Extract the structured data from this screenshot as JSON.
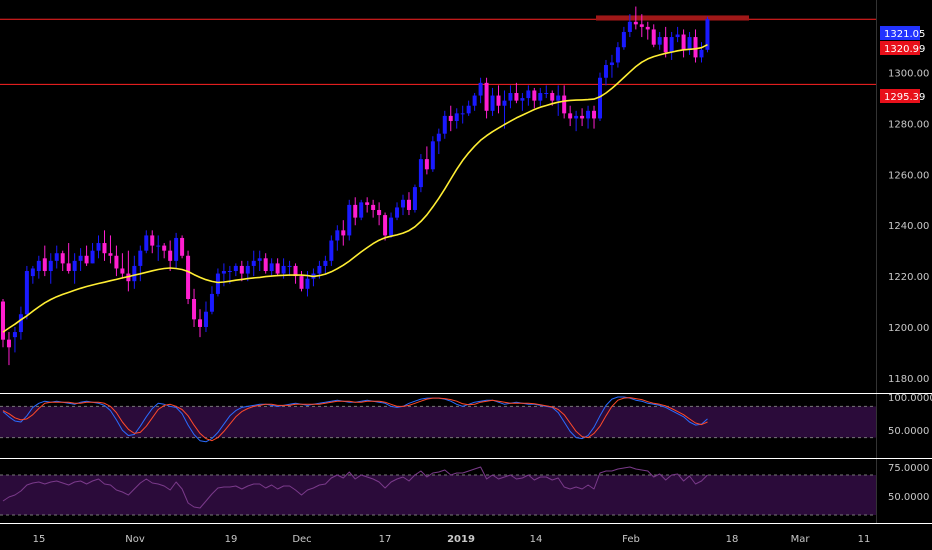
{
  "colors": {
    "background": "#000000",
    "bull_candle": "#1a1aff",
    "bear_candle": "#ff1fd0",
    "ma_line": "#ffee33",
    "hline": "#ff2222",
    "resistance_zone": "#a01818",
    "last_price_tag": "#2233ff",
    "level_tag": "#e8101a",
    "stoch_k": "#2a6cff",
    "stoch_d": "#ff4a2a",
    "rsi_line": "#7a3a8a",
    "osc_band": "#2b0b3a",
    "separator": "#ffffff",
    "axis_text": "#c8c8c8"
  },
  "price_axis": {
    "labels": [
      "1300.00",
      "1280.00",
      "1260.00",
      "1240.00",
      "1220.00",
      "1200.00",
      "1180.00"
    ],
    "values": [
      1300,
      1280,
      1260,
      1240,
      1220,
      1200,
      1180
    ],
    "range": [
      1176,
      1327
    ]
  },
  "price_tags": [
    {
      "label": "1321.05",
      "value": 1321.05,
      "color": "#2233ff"
    },
    {
      "label": "1320.99",
      "value": 1320.99,
      "color": "#e8101a"
    },
    {
      "label": "1295.39",
      "value": 1295.39,
      "color": "#e8101a"
    }
  ],
  "stoch_axis": {
    "labels": [
      "100.0000",
      "50.0000"
    ],
    "values": [
      100,
      50
    ],
    "band": [
      20,
      80
    ]
  },
  "rsi_axis": {
    "labels": [
      "75.0000",
      "50.0000"
    ],
    "values": [
      75,
      50
    ],
    "band": [
      30,
      70
    ]
  },
  "time_axis": {
    "labels": [
      "15",
      "Nov",
      "19",
      "Dec",
      "17",
      "2019",
      "14",
      "Feb",
      "18",
      "Mar",
      "11"
    ],
    "bold": [
      false,
      false,
      false,
      false,
      false,
      true,
      false,
      false,
      false,
      false,
      false
    ]
  },
  "chart_data": {
    "type": "candlestick",
    "title": "",
    "hlines": [
      1320.99,
      1295.39
    ],
    "zone": [
      1320.5,
      1322.5
    ],
    "candles": [
      [
        1210.0,
        1211.0,
        1192.0,
        1195.0
      ],
      [
        1195.0,
        1198.0,
        1185.0,
        1192.0
      ],
      [
        1196.0,
        1200.0,
        1190.0,
        1198.0
      ],
      [
        1198.0,
        1208.0,
        1195.0,
        1205.0
      ],
      [
        1205.0,
        1224.0,
        1203.0,
        1222.0
      ],
      [
        1220.0,
        1224.0,
        1217.0,
        1223.0
      ],
      [
        1222.0,
        1228.0,
        1219.0,
        1226.0
      ],
      [
        1227.0,
        1232.0,
        1220.0,
        1222.0
      ],
      [
        1222.0,
        1229.0,
        1217.0,
        1226.0
      ],
      [
        1226.0,
        1232.0,
        1223.0,
        1229.0
      ],
      [
        1229.0,
        1230.0,
        1222.0,
        1225.0
      ],
      [
        1225.0,
        1233.0,
        1221.0,
        1222.0
      ],
      [
        1222.0,
        1229.0,
        1217.0,
        1226.0
      ],
      [
        1226.0,
        1231.0,
        1222.0,
        1228.0
      ],
      [
        1228.0,
        1232.0,
        1224.0,
        1225.0
      ],
      [
        1225.0,
        1233.0,
        1225.0,
        1230.0
      ],
      [
        1230.0,
        1236.0,
        1227.0,
        1233.0
      ],
      [
        1233.0,
        1238.0,
        1226.0,
        1229.0
      ],
      [
        1229.0,
        1236.0,
        1225.0,
        1228.0
      ],
      [
        1228.0,
        1232.0,
        1220.0,
        1223.0
      ],
      [
        1223.0,
        1229.0,
        1219.0,
        1221.0
      ],
      [
        1221.0,
        1230.0,
        1214.0,
        1218.0
      ],
      [
        1218.0,
        1228.0,
        1215.0,
        1224.0
      ],
      [
        1224.0,
        1232.0,
        1218.0,
        1230.0
      ],
      [
        1230.0,
        1238.0,
        1229.0,
        1236.0
      ],
      [
        1236.0,
        1238.0,
        1229.0,
        1232.0
      ],
      [
        1232.0,
        1236.0,
        1226.0,
        1232.0
      ],
      [
        1232.0,
        1233.0,
        1227.0,
        1230.0
      ],
      [
        1230.0,
        1234.0,
        1222.0,
        1226.0
      ],
      [
        1226.0,
        1237.0,
        1223.0,
        1235.0
      ],
      [
        1235.0,
        1236.0,
        1227.0,
        1228.0
      ],
      [
        1228.0,
        1230.0,
        1209.0,
        1211.0
      ],
      [
        1211.0,
        1215.0,
        1200.0,
        1203.0
      ],
      [
        1203.0,
        1207.0,
        1196.0,
        1200.0
      ],
      [
        1200.0,
        1210.0,
        1198.0,
        1206.0
      ],
      [
        1206.0,
        1216.0,
        1205.0,
        1213.0
      ],
      [
        1213.0,
        1223.0,
        1212.0,
        1221.0
      ],
      [
        1221.0,
        1225.0,
        1216.0,
        1222.0
      ],
      [
        1222.0,
        1224.0,
        1217.0,
        1222.0
      ],
      [
        1222.0,
        1225.0,
        1220.0,
        1224.0
      ],
      [
        1224.0,
        1226.0,
        1218.0,
        1221.0
      ],
      [
        1221.0,
        1226.0,
        1218.0,
        1224.0
      ],
      [
        1224.0,
        1230.0,
        1220.0,
        1226.0
      ],
      [
        1226.0,
        1230.0,
        1222.0,
        1227.0
      ],
      [
        1227.0,
        1229.0,
        1221.0,
        1222.0
      ],
      [
        1222.0,
        1227.0,
        1220.0,
        1225.0
      ],
      [
        1225.0,
        1227.0,
        1220.0,
        1221.0
      ],
      [
        1221.0,
        1227.0,
        1219.0,
        1224.0
      ],
      [
        1224.0,
        1226.0,
        1220.0,
        1224.0
      ],
      [
        1224.0,
        1225.0,
        1217.0,
        1220.0
      ],
      [
        1220.0,
        1222.0,
        1214.0,
        1215.0
      ],
      [
        1215.0,
        1222.0,
        1212.0,
        1219.0
      ],
      [
        1219.0,
        1223.0,
        1216.0,
        1221.0
      ],
      [
        1221.0,
        1226.0,
        1219.0,
        1224.0
      ],
      [
        1224.0,
        1228.0,
        1221.0,
        1226.0
      ],
      [
        1226.0,
        1236.0,
        1224.0,
        1234.0
      ],
      [
        1234.0,
        1240.0,
        1230.0,
        1238.0
      ],
      [
        1238.0,
        1242.0,
        1232.0,
        1236.0
      ],
      [
        1236.0,
        1250.0,
        1234.0,
        1248.0
      ],
      [
        1248.0,
        1251.0,
        1240.0,
        1243.0
      ],
      [
        1243.0,
        1250.0,
        1242.0,
        1249.0
      ],
      [
        1249.0,
        1251.0,
        1245.0,
        1248.0
      ],
      [
        1248.0,
        1250.0,
        1243.0,
        1246.0
      ],
      [
        1246.0,
        1249.0,
        1240.0,
        1244.0
      ],
      [
        1244.0,
        1245.0,
        1234.0,
        1236.0
      ],
      [
        1236.0,
        1245.0,
        1235.0,
        1243.0
      ],
      [
        1243.0,
        1249.0,
        1242.0,
        1247.0
      ],
      [
        1247.0,
        1252.0,
        1244.0,
        1250.0
      ],
      [
        1250.0,
        1253.0,
        1244.0,
        1246.0
      ],
      [
        1246.0,
        1256.0,
        1245.0,
        1255.0
      ],
      [
        1255.0,
        1268.0,
        1253.0,
        1266.0
      ],
      [
        1266.0,
        1271.0,
        1260.0,
        1262.0
      ],
      [
        1262.0,
        1275.0,
        1261.0,
        1273.0
      ],
      [
        1273.0,
        1278.0,
        1268.0,
        1276.0
      ],
      [
        1276.0,
        1285.0,
        1274.0,
        1283.0
      ],
      [
        1283.0,
        1287.0,
        1277.0,
        1281.0
      ],
      [
        1281.0,
        1286.0,
        1278.0,
        1284.0
      ],
      [
        1284.0,
        1287.0,
        1280.0,
        1284.0
      ],
      [
        1284.0,
        1289.0,
        1283.0,
        1287.0
      ],
      [
        1287.0,
        1292.0,
        1285.0,
        1291.0
      ],
      [
        1291.0,
        1298.0,
        1288.0,
        1296.0
      ],
      [
        1296.0,
        1298.0,
        1282.0,
        1285.0
      ],
      [
        1285.0,
        1294.0,
        1283.0,
        1291.0
      ],
      [
        1291.0,
        1295.0,
        1284.0,
        1287.0
      ],
      [
        1287.0,
        1293.0,
        1278.0,
        1289.0
      ],
      [
        1289.0,
        1295.0,
        1286.0,
        1292.0
      ],
      [
        1292.0,
        1296.0,
        1288.0,
        1289.0
      ],
      [
        1289.0,
        1292.0,
        1285.0,
        1290.0
      ],
      [
        1290.0,
        1295.0,
        1287.0,
        1293.0
      ],
      [
        1293.0,
        1294.0,
        1286.0,
        1289.0
      ],
      [
        1289.0,
        1294.0,
        1287.0,
        1292.0
      ],
      [
        1292.0,
        1295.0,
        1290.0,
        1292.0
      ],
      [
        1292.0,
        1293.0,
        1287.0,
        1289.0
      ],
      [
        1289.0,
        1295.0,
        1283.0,
        1291.0
      ],
      [
        1291.0,
        1295.0,
        1282.0,
        1284.0
      ],
      [
        1284.0,
        1287.0,
        1279.0,
        1282.0
      ],
      [
        1282.0,
        1285.0,
        1277.0,
        1283.0
      ],
      [
        1283.0,
        1286.0,
        1279.0,
        1282.0
      ],
      [
        1282.0,
        1287.0,
        1278.0,
        1285.0
      ],
      [
        1285.0,
        1287.0,
        1278.0,
        1282.0
      ],
      [
        1282.0,
        1300.0,
        1281.0,
        1298.0
      ],
      [
        1298.0,
        1305.0,
        1295.0,
        1303.0
      ],
      [
        1303.0,
        1307.0,
        1298.0,
        1304.0
      ],
      [
        1304.0,
        1312.0,
        1302.0,
        1310.0
      ],
      [
        1310.0,
        1318.0,
        1309.0,
        1316.0
      ],
      [
        1316.0,
        1323.0,
        1314.0,
        1320.0
      ],
      [
        1320.0,
        1326.0,
        1317.0,
        1319.0
      ],
      [
        1319.0,
        1323.0,
        1314.0,
        1318.0
      ],
      [
        1318.0,
        1320.0,
        1313.0,
        1317.0
      ],
      [
        1317.0,
        1319.0,
        1310.0,
        1311.0
      ],
      [
        1311.0,
        1316.0,
        1309.0,
        1314.0
      ],
      [
        1314.0,
        1318.0,
        1306.0,
        1308.0
      ],
      [
        1308.0,
        1316.0,
        1305.0,
        1314.0
      ],
      [
        1314.0,
        1318.0,
        1312.0,
        1315.0
      ],
      [
        1315.0,
        1317.0,
        1306.0,
        1309.0
      ],
      [
        1309.0,
        1316.0,
        1307.0,
        1314.0
      ],
      [
        1314.0,
        1317.0,
        1304.0,
        1306.0
      ],
      [
        1306.0,
        1312.0,
        1304.0,
        1309.0
      ],
      [
        1309.0,
        1322.0,
        1308.0,
        1321.05
      ]
    ],
    "ma": [
      1198.0,
      1199.6,
      1201.1,
      1202.8,
      1204.4,
      1206.2,
      1207.9,
      1209.5,
      1210.8,
      1211.9,
      1212.8,
      1213.6,
      1214.4,
      1215.2,
      1215.9,
      1216.5,
      1217.1,
      1217.6,
      1218.2,
      1218.7,
      1219.3,
      1219.8,
      1220.4,
      1220.9,
      1221.5,
      1222.1,
      1222.6,
      1223.0,
      1223.2,
      1223.0,
      1222.6,
      1221.8,
      1220.6,
      1219.5,
      1218.6,
      1217.9,
      1217.5,
      1217.7,
      1218.0,
      1218.4,
      1218.7,
      1219.0,
      1219.3,
      1219.5,
      1219.8,
      1220.0,
      1220.2,
      1220.3,
      1220.4,
      1220.4,
      1220.4,
      1220.2,
      1219.9,
      1220.2,
      1220.8,
      1221.7,
      1222.9,
      1224.3,
      1225.9,
      1227.7,
      1229.5,
      1231.2,
      1232.8,
      1234.1,
      1235.1,
      1235.7,
      1236.2,
      1236.9,
      1237.9,
      1239.4,
      1241.5,
      1244.1,
      1247.2,
      1250.6,
      1254.3,
      1258.2,
      1262.0,
      1265.5,
      1268.5,
      1271.1,
      1273.4,
      1275.2,
      1276.8,
      1278.2,
      1279.6,
      1280.9,
      1282.2,
      1283.3,
      1284.4,
      1285.5,
      1286.4,
      1287.1,
      1287.8,
      1288.4,
      1288.8,
      1289.1,
      1289.2,
      1289.3,
      1289.4,
      1289.6,
      1290.5,
      1292.0,
      1293.8,
      1295.9,
      1298.1,
      1300.3,
      1302.4,
      1304.1,
      1305.4,
      1306.3,
      1307.0,
      1307.6,
      1308.1,
      1308.6,
      1309.0,
      1309.2,
      1309.4,
      1309.8,
      1311.0
    ],
    "stoch_k": [
      70,
      60,
      52,
      50,
      62,
      78,
      86,
      90,
      88,
      90,
      88,
      86,
      84,
      88,
      90,
      88,
      86,
      82,
      72,
      54,
      34,
      24,
      26,
      42,
      60,
      76,
      86,
      84,
      80,
      78,
      66,
      44,
      26,
      14,
      12,
      18,
      30,
      46,
      62,
      72,
      78,
      80,
      82,
      84,
      84,
      82,
      80,
      82,
      84,
      86,
      84,
      82,
      84,
      86,
      88,
      90,
      92,
      90,
      88,
      88,
      90,
      92,
      90,
      88,
      86,
      80,
      78,
      80,
      86,
      90,
      94,
      96,
      96,
      96,
      94,
      90,
      84,
      80,
      84,
      88,
      90,
      92,
      92,
      88,
      84,
      86,
      88,
      86,
      84,
      84,
      82,
      80,
      78,
      68,
      50,
      32,
      20,
      18,
      24,
      40,
      62,
      82,
      94,
      98,
      98,
      96,
      92,
      90,
      86,
      84,
      82,
      78,
      72,
      66,
      60,
      50,
      44,
      46,
      56
    ],
    "stoch_d": [
      72,
      66,
      58,
      54,
      56,
      64,
      76,
      86,
      88,
      88,
      88,
      88,
      86,
      86,
      88,
      88,
      88,
      86,
      80,
      68,
      50,
      36,
      28,
      30,
      42,
      58,
      74,
      82,
      84,
      80,
      74,
      62,
      44,
      28,
      18,
      14,
      20,
      32,
      46,
      60,
      70,
      76,
      80,
      82,
      84,
      84,
      82,
      82,
      82,
      84,
      84,
      84,
      84,
      84,
      86,
      88,
      90,
      90,
      90,
      88,
      88,
      90,
      90,
      90,
      88,
      84,
      80,
      80,
      82,
      86,
      90,
      94,
      96,
      96,
      95,
      93,
      90,
      85,
      83,
      84,
      88,
      90,
      92,
      90,
      88,
      86,
      86,
      86,
      86,
      85,
      83,
      81,
      79,
      74,
      64,
      48,
      32,
      22,
      20,
      28,
      42,
      62,
      80,
      92,
      96,
      97,
      95,
      93,
      89,
      86,
      84,
      81,
      76,
      70,
      64,
      56,
      48,
      45,
      50
    ],
    "rsi": [
      44,
      48,
      50,
      54,
      60,
      62,
      63,
      61,
      63,
      64,
      62,
      60,
      63,
      64,
      61,
      64,
      66,
      61,
      60,
      55,
      53,
      50,
      56,
      62,
      66,
      62,
      61,
      59,
      55,
      63,
      56,
      42,
      38,
      37,
      44,
      51,
      57,
      58,
      58,
      59,
      56,
      59,
      61,
      61,
      57,
      60,
      56,
      59,
      59,
      55,
      50,
      55,
      57,
      60,
      61,
      67,
      70,
      67,
      73,
      66,
      70,
      68,
      66,
      63,
      57,
      63,
      66,
      68,
      64,
      70,
      74,
      68,
      72,
      73,
      75,
      70,
      72,
      72,
      74,
      76,
      78,
      66,
      70,
      66,
      68,
      70,
      66,
      67,
      70,
      65,
      68,
      68,
      65,
      67,
      58,
      56,
      58,
      56,
      60,
      56,
      72,
      74,
      74,
      76,
      77,
      78,
      76,
      75,
      74,
      68,
      71,
      65,
      70,
      71,
      64,
      69,
      61,
      64,
      70
    ]
  }
}
